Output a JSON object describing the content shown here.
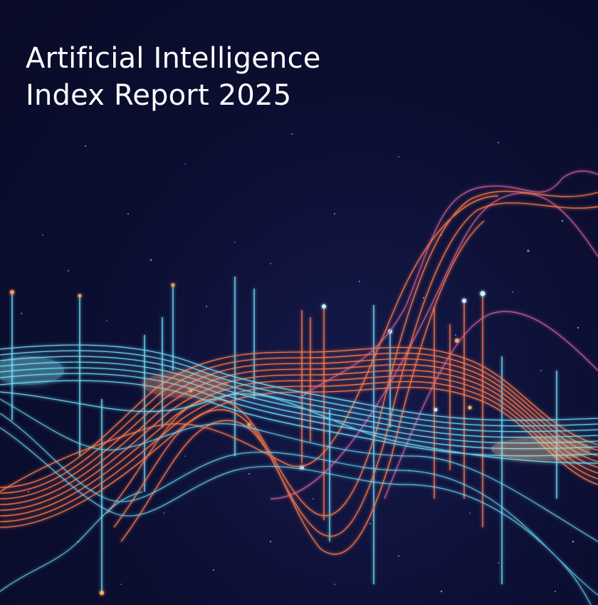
{
  "cover": {
    "title_line_1": "Artificial Intelligence",
    "title_line_2": "Index Report 2025"
  },
  "colors": {
    "background": "#0b0e30",
    "cyan": "#6fe3ff",
    "orange": "#ff7a4a",
    "magenta": "#d0609a",
    "title": "#ffffff"
  }
}
